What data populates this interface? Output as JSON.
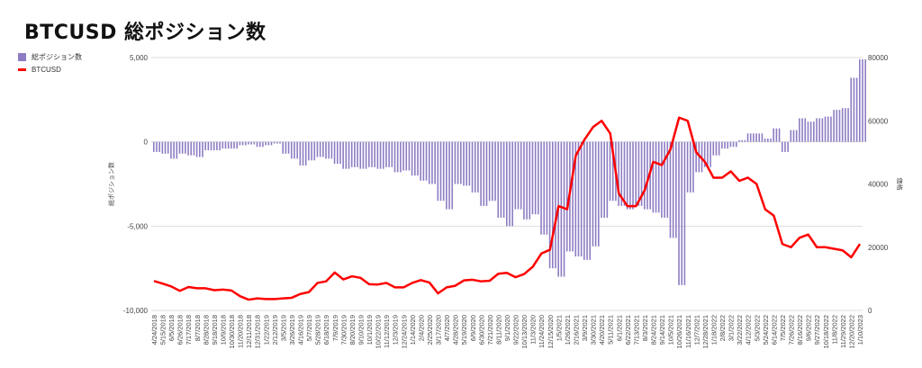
{
  "chart_data": {
    "type": "bar+line",
    "title": "BTCUSD  総ポジション数",
    "legend": {
      "placement": "top-left",
      "entries": [
        "総ポジション数",
        "BTCUSD"
      ]
    },
    "ylabel_left": "総ポジション数",
    "ylabel_right": "価格",
    "ylim_left": [
      -10000,
      5000
    ],
    "ylim_right": [
      0,
      80000
    ],
    "yticks_left": [
      "5,000",
      "0",
      "-5,000",
      "-10,000"
    ],
    "yticks_right": [
      "80000",
      "60000",
      "40000",
      "20000",
      "0"
    ],
    "colors": {
      "bars": "#8e7cc3",
      "line": "#ff0000",
      "grid": "#dddddd"
    },
    "categories": [
      "4/24/2018",
      "5/15/2018",
      "6/5/2018",
      "6/26/2018",
      "7/17/2018",
      "8/7/2018",
      "8/28/2018",
      "9/18/2018",
      "10/9/2018",
      "10/30/2018",
      "11/20/2018",
      "12/11/2018",
      "12/31/2018",
      "1/22/2019",
      "2/12/2019",
      "3/5/2019",
      "3/26/2019",
      "4/16/2019",
      "5/7/2019",
      "5/28/2019",
      "6/18/2019",
      "7/9/2019",
      "7/30/2019",
      "8/20/2019",
      "9/10/2019",
      "10/1/2019",
      "10/22/2019",
      "11/12/2019",
      "12/3/2019",
      "12/24/2019",
      "1/14/2020",
      "2/4/2020",
      "2/25/2020",
      "3/17/2020",
      "4/7/2020",
      "4/28/2020",
      "5/19/2020",
      "6/9/2020",
      "6/30/2020",
      "7/21/2020",
      "8/11/2020",
      "9/1/2020",
      "9/22/2020",
      "10/13/2020",
      "11/3/2020",
      "11/24/2020",
      "12/15/2020",
      "1/5/2021",
      "1/26/2021",
      "2/16/2021",
      "3/9/2021",
      "3/30/2021",
      "4/20/2021",
      "5/11/2021",
      "6/1/2021",
      "6/22/2021",
      "7/13/2021",
      "8/3/2021",
      "8/24/2021",
      "9/14/2021",
      "10/5/2021",
      "10/26/2021",
      "11/16/2021",
      "12/7/2021",
      "12/28/2021",
      "1/18/2022",
      "2/8/2022",
      "3/1/2022",
      "3/22/2022",
      "4/12/2022",
      "5/3/2022",
      "5/24/2022",
      "6/14/2022",
      "7/5/2022",
      "7/26/2022",
      "8/16/2022",
      "9/6/2022",
      "9/27/2022",
      "10/18/2022",
      "11/8/2022",
      "11/29/2022",
      "12/20/2022",
      "1/10/2023"
    ],
    "series": [
      {
        "name": "総ポジション数",
        "axis": "left",
        "type": "bar",
        "values": [
          -600,
          -700,
          -1000,
          -700,
          -800,
          -900,
          -500,
          -500,
          -400,
          -400,
          -200,
          -150,
          -300,
          -200,
          -100,
          -700,
          -1000,
          -1400,
          -1100,
          -900,
          -1000,
          -1300,
          -1600,
          -1500,
          -1600,
          -1500,
          -1600,
          -1500,
          -1800,
          -1700,
          -2000,
          -2300,
          -2500,
          -3500,
          -4000,
          -2500,
          -2600,
          -3000,
          -3800,
          -3500,
          -4500,
          -5000,
          -4000,
          -4600,
          -4300,
          -5500,
          -7500,
          -8000,
          -6500,
          -6800,
          -7000,
          -6200,
          -4500,
          -3500,
          -3800,
          -4000,
          -3800,
          -4000,
          -4200,
          -4500,
          -5700,
          -8500,
          -3000,
          -1800,
          -1500,
          -800,
          -400,
          -300,
          100,
          500,
          500,
          200,
          800,
          -600,
          700,
          1400,
          1200,
          1400,
          1500,
          1900,
          2000,
          3800,
          4900
        ]
      },
      {
        "name": "BTCUSD",
        "axis": "right",
        "type": "line",
        "values": [
          9300,
          8500,
          7600,
          6200,
          7400,
          7000,
          7000,
          6400,
          6600,
          6300,
          4500,
          3400,
          3800,
          3600,
          3600,
          3800,
          4000,
          5200,
          5800,
          8700,
          9200,
          12000,
          9800,
          10800,
          10300,
          8300,
          8200,
          8700,
          7300,
          7300,
          8700,
          9600,
          8800,
          5400,
          7300,
          7800,
          9500,
          9700,
          9200,
          9400,
          11600,
          11900,
          10500,
          11500,
          13800,
          18000,
          19200,
          33000,
          32000,
          49000,
          54000,
          58000,
          60000,
          56000,
          37000,
          33000,
          33000,
          38000,
          47000,
          46000,
          51000,
          61000,
          60000,
          50000,
          47000,
          42000,
          42000,
          44000,
          41000,
          42000,
          40000,
          32000,
          30000,
          21000,
          20000,
          23000,
          24000,
          20000,
          20000,
          19500,
          19000,
          16800,
          21000
        ]
      }
    ]
  }
}
